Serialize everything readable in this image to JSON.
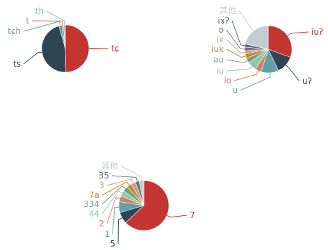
{
  "chart_data": [
    {
      "type": "pie",
      "title": "",
      "series": [
        {
          "name": "",
          "values": [
            {
              "label": "tɕ",
              "value": 49.6,
              "color": "#c23531"
            },
            {
              "label": "ts",
              "value": 46.0,
              "color": "#2f4554"
            },
            {
              "label": "tɕh",
              "value": 2.0,
              "color": "#61a0a8"
            },
            {
              "label": "t",
              "value": 1.2,
              "color": "#d48265"
            },
            {
              "label": "th",
              "value": 1.2,
              "color": "#91c7ae"
            }
          ]
        }
      ]
    },
    {
      "type": "pie",
      "title": "",
      "series": [
        {
          "name": "",
          "values": [
            {
              "label": "iuʔ",
              "value": 30.5,
              "color": "#c23531"
            },
            {
              "label": "uʔ",
              "value": 12.4,
              "color": "#2f4554"
            },
            {
              "label": "u",
              "value": 12.0,
              "color": "#61a0a8"
            },
            {
              "label": "io",
              "value": 4.2,
              "color": "#d48265"
            },
            {
              "label": "iu",
              "value": 6.2,
              "color": "#91c7ae"
            },
            {
              "label": "əu",
              "value": 3.5,
              "color": "#749f83"
            },
            {
              "label": "iuk",
              "value": 3.0,
              "color": "#ca8622"
            },
            {
              "label": "iɤ",
              "value": 2.2,
              "color": "#bda29a"
            },
            {
              "label": "o",
              "value": 2.5,
              "color": "#6e7074"
            },
            {
              "label": "iɤʔ",
              "value": 2.0,
              "color": "#546570"
            },
            {
              "label": "其他",
              "value": 21.5,
              "color": "#c4ccd3"
            }
          ]
        }
      ]
    },
    {
      "type": "pie",
      "title": "",
      "series": [
        {
          "name": "",
          "values": [
            {
              "label": "7",
              "value": 63.0,
              "color": "#c23531"
            },
            {
              "label": "5",
              "value": 7.5,
              "color": "#2f4554"
            },
            {
              "label": "1",
              "value": 7.0,
              "color": "#61a0a8"
            },
            {
              "label": "2",
              "value": 4.0,
              "color": "#d48265"
            },
            {
              "label": "44",
              "value": 3.5,
              "color": "#91c7ae"
            },
            {
              "label": "334",
              "value": 3.5,
              "color": "#749f83"
            },
            {
              "label": "7a",
              "value": 3.0,
              "color": "#ca8622"
            },
            {
              "label": "3",
              "value": 3.0,
              "color": "#bda29a"
            },
            {
              "label": "35",
              "value": 2.5,
              "color": "#6e7074"
            },
            {
              "label": "其他",
              "value": 3.0,
              "color": "#c4ccd3"
            }
          ]
        }
      ]
    }
  ]
}
